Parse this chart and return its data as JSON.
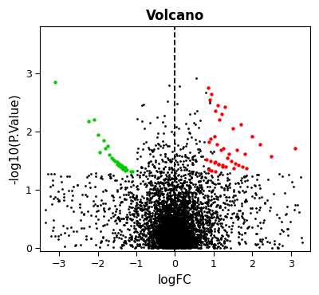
{
  "title": "Volcano",
  "xlabel": "logFC",
  "ylabel": "-log10(P.Value)",
  "xlim": [
    -3.5,
    3.5
  ],
  "ylim": [
    -0.05,
    3.8
  ],
  "xticks": [
    -3,
    -2,
    -1,
    0,
    1,
    2,
    3
  ],
  "yticks": [
    0,
    1,
    2,
    3
  ],
  "vline_x": 0.0,
  "fc_threshold": 1.0,
  "pval_threshold": 1.301,
  "n_black": 5000,
  "dot_size": 4,
  "alpha": 1.0,
  "color_up": "#FF0000",
  "color_down": "#00CC00",
  "color_ns": "#000000",
  "seed": 7,
  "title_fontsize": 12,
  "label_fontsize": 11,
  "green_fc": [
    -3.1,
    -2.1,
    -2.25,
    -1.95,
    -1.75,
    -1.65,
    -1.55,
    -1.45,
    -1.35,
    -1.7,
    -1.8,
    -1.5,
    -1.6,
    -1.4,
    -2.0,
    -1.3,
    -1.25,
    -1.15,
    -1.1,
    -1.85,
    -1.5,
    -1.45,
    -1.4,
    -1.35,
    -1.3
  ],
  "green_p": [
    2.85,
    2.2,
    2.18,
    1.65,
    1.75,
    1.55,
    1.5,
    1.45,
    1.4,
    1.6,
    1.72,
    1.48,
    1.52,
    1.42,
    1.95,
    1.38,
    1.35,
    1.32,
    1.31,
    1.85,
    1.44,
    1.41,
    1.38,
    1.36,
    1.33
  ],
  "red_fc": [
    0.85,
    0.9,
    0.95,
    1.05,
    1.1,
    1.15,
    1.2,
    1.3,
    1.5,
    1.7,
    2.0,
    2.2,
    3.1,
    0.88,
    0.92,
    1.02,
    1.08,
    1.18,
    1.25,
    1.4,
    1.6,
    1.8,
    2.5,
    0.82,
    1.05,
    1.12,
    1.32,
    1.52,
    1.22,
    1.02,
    0.92,
    1.12,
    1.22,
    1.35,
    1.45,
    1.55,
    1.65,
    1.75,
    1.85,
    0.88,
    0.95,
    1.05
  ],
  "red_p": [
    2.75,
    2.55,
    2.65,
    2.35,
    2.45,
    2.2,
    2.3,
    2.42,
    2.05,
    2.12,
    1.92,
    1.78,
    1.72,
    1.82,
    1.88,
    1.92,
    1.78,
    1.68,
    1.72,
    1.62,
    1.68,
    1.62,
    1.58,
    1.52,
    1.48,
    1.44,
    1.4,
    1.37,
    1.42,
    1.47,
    1.5,
    1.44,
    1.4,
    1.55,
    1.5,
    1.46,
    1.43,
    1.4,
    1.37,
    1.35,
    1.33,
    1.31
  ]
}
